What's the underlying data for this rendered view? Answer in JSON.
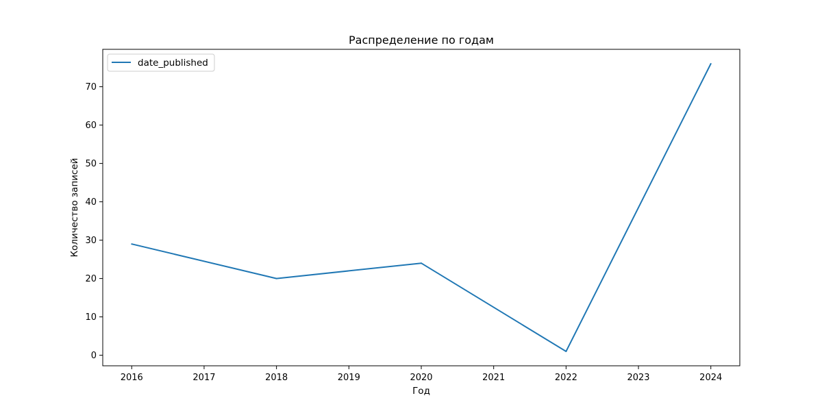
{
  "chart_data": {
    "type": "line",
    "title": "Распределение по годам",
    "xlabel": "Год",
    "ylabel": "Количество записей",
    "x": [
      2016,
      2018,
      2020,
      2022,
      2024
    ],
    "x_ticks": [
      "2016",
      "2017",
      "2018",
      "2019",
      "2020",
      "2021",
      "2022",
      "2023",
      "2024"
    ],
    "y_ticks": [
      "0",
      "10",
      "20",
      "30",
      "40",
      "50",
      "60",
      "70"
    ],
    "xlim": [
      2015.6,
      2024.4
    ],
    "ylim": [
      -2.75,
      79.75
    ],
    "grid": false,
    "legend_position": "upper-left",
    "series": [
      {
        "name": "date_published",
        "color": "#1f77b4",
        "values": [
          29,
          20,
          24,
          1,
          76
        ]
      }
    ]
  }
}
